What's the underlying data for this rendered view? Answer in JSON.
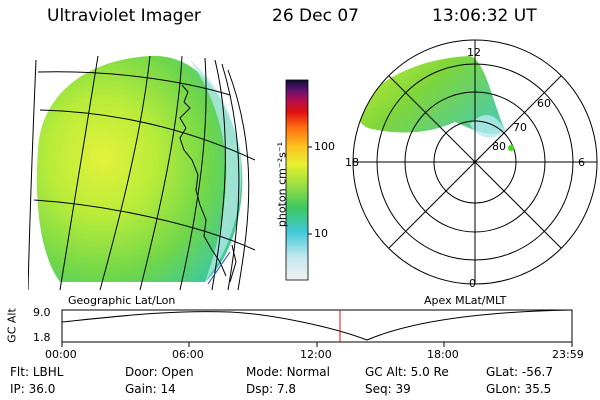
{
  "header": {
    "instrument": "Ultraviolet Imager",
    "date": "26 Dec 07",
    "time": "13:06:32 UT"
  },
  "colorbar": {
    "unit_label": "photon cm⁻²s⁻¹",
    "ticks": [
      "100",
      "10"
    ]
  },
  "panels": {
    "left_label": "Geographic Lat/Lon",
    "right_label": "Apex MLat/MLT"
  },
  "polar": {
    "mlt_labels": {
      "top": "12",
      "left": "18",
      "right": "6",
      "bottom": "0"
    },
    "lat_labels": [
      "60",
      "70",
      "80"
    ]
  },
  "altitude_plot": {
    "axis_label": "GC Alt",
    "y_ticks": [
      "9.0",
      "1.8"
    ],
    "x_ticks": [
      "00:00",
      "06:00",
      "12:00",
      "18:00",
      "23:59"
    ],
    "current_time_hours": 13.11
  },
  "status": {
    "filter": {
      "label": "Flt:",
      "value": "LBHL"
    },
    "ip": {
      "label": "IP:",
      "value": "36.0"
    },
    "door": {
      "label": "Door:",
      "value": "Open"
    },
    "gain": {
      "label": "Gain:",
      "value": "14"
    },
    "mode": {
      "label": "Mode:",
      "value": "Normal"
    },
    "dsp": {
      "label": "Dsp:",
      "value": "7.8"
    },
    "gc_alt": {
      "label": "GC Alt:",
      "value": "5.0 Re"
    },
    "seq": {
      "label": "Seq:",
      "value": "39"
    },
    "glat": {
      "label": "GLat:",
      "value": "-56.7"
    },
    "glon": {
      "label": "GLon:",
      "value": "35.5"
    }
  },
  "colors": {
    "auroral_main": "#7fd63a",
    "auroral_edge": "#c9ef3a",
    "time_marker": "#e01010",
    "sat_marker": "#3ee01a"
  }
}
